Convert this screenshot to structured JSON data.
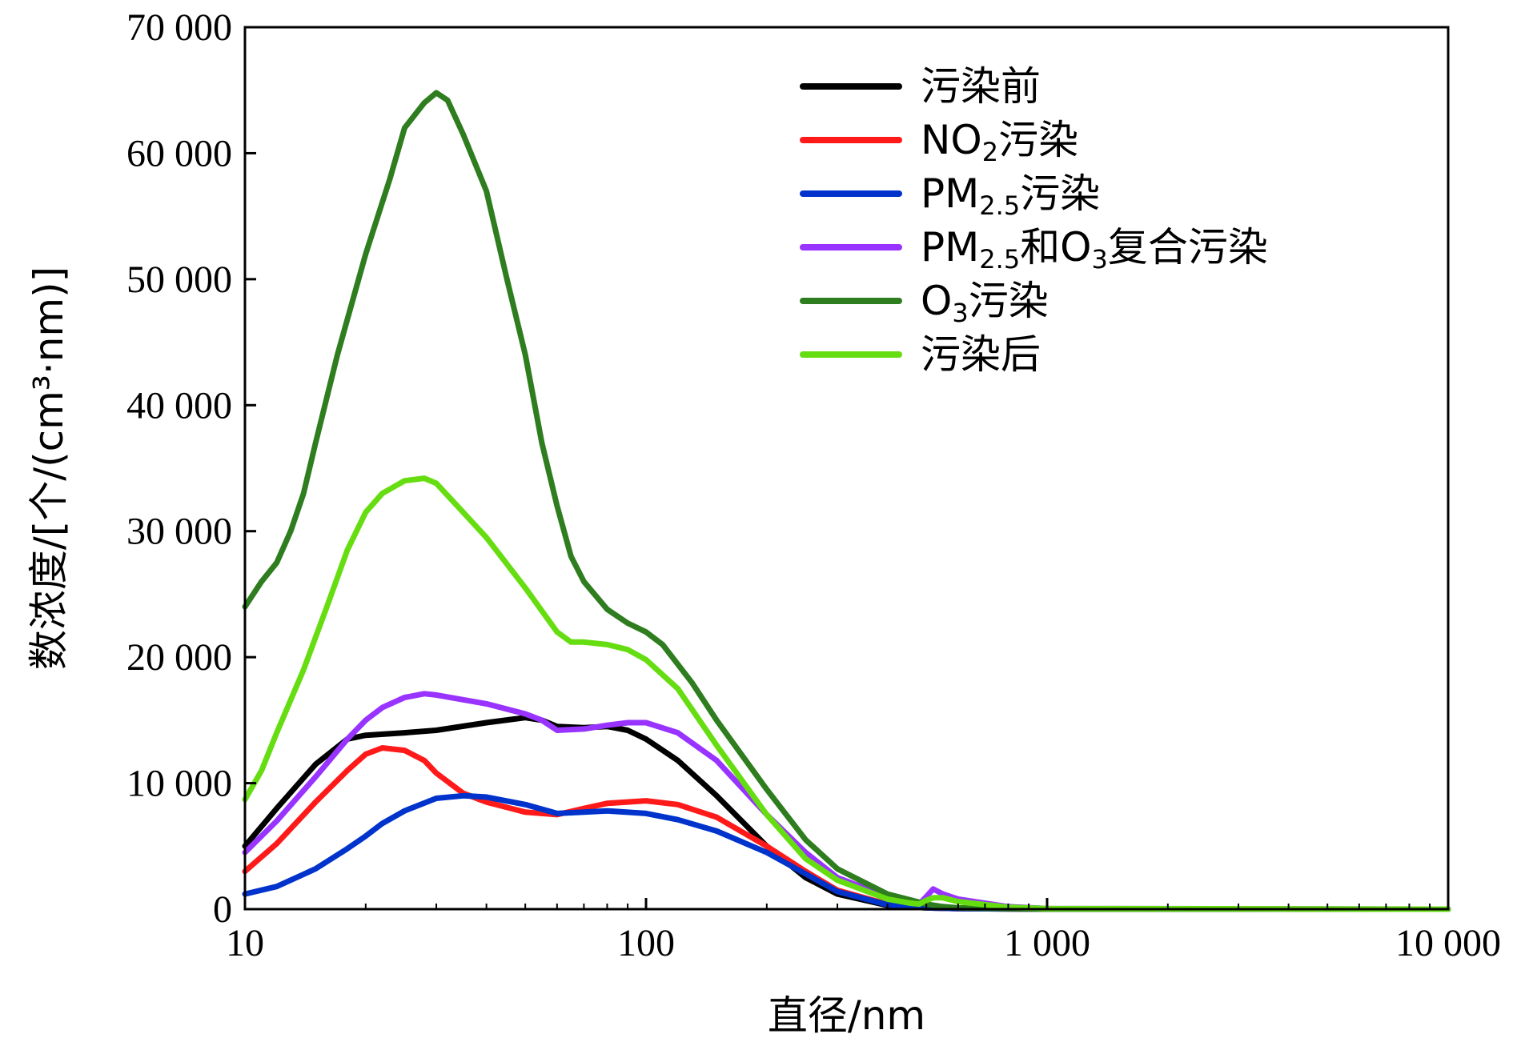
{
  "chart_data": {
    "type": "line",
    "xlabel": "直径/nm",
    "ylabel": "数浓度/[个/(cm³·nm)]",
    "xscale": "log",
    "xlim": [
      10,
      10000
    ],
    "ylim": [
      0,
      70000
    ],
    "grid": false,
    "legend_position": "top-right",
    "x_ticks": [
      {
        "value": 10,
        "label": "10"
      },
      {
        "value": 100,
        "label": "100"
      },
      {
        "value": 1000,
        "label": "1 000"
      },
      {
        "value": 10000,
        "label": "10 000"
      }
    ],
    "y_ticks": [
      {
        "value": 0,
        "label": "0"
      },
      {
        "value": 10000,
        "label": "10 000"
      },
      {
        "value": 20000,
        "label": "20 000"
      },
      {
        "value": 30000,
        "label": "30 000"
      },
      {
        "value": 40000,
        "label": "40 000"
      },
      {
        "value": 50000,
        "label": "50 000"
      },
      {
        "value": 60000,
        "label": "60 000"
      },
      {
        "value": 70000,
        "label": "70 000"
      }
    ],
    "series": [
      {
        "name": "污染前",
        "color": "#000000",
        "points": [
          [
            10,
            5000
          ],
          [
            12,
            8000
          ],
          [
            15,
            11500
          ],
          [
            18,
            13500
          ],
          [
            20,
            13800
          ],
          [
            25,
            14000
          ],
          [
            30,
            14200
          ],
          [
            40,
            14800
          ],
          [
            50,
            15200
          ],
          [
            55,
            15000
          ],
          [
            60,
            14500
          ],
          [
            70,
            14400
          ],
          [
            80,
            14500
          ],
          [
            90,
            14200
          ],
          [
            100,
            13500
          ],
          [
            120,
            11800
          ],
          [
            150,
            9000
          ],
          [
            200,
            5000
          ],
          [
            250,
            2500
          ],
          [
            300,
            1200
          ],
          [
            400,
            300
          ],
          [
            500,
            100
          ],
          [
            600,
            50
          ],
          [
            1000,
            0
          ],
          [
            10000,
            0
          ]
        ]
      },
      {
        "name": "NO₂污染",
        "color": "#ff1a1a",
        "points": [
          [
            10,
            3000
          ],
          [
            12,
            5200
          ],
          [
            15,
            8500
          ],
          [
            18,
            11000
          ],
          [
            20,
            12300
          ],
          [
            22,
            12800
          ],
          [
            25,
            12600
          ],
          [
            28,
            11800
          ],
          [
            30,
            10800
          ],
          [
            35,
            9200
          ],
          [
            40,
            8500
          ],
          [
            50,
            7700
          ],
          [
            60,
            7500
          ],
          [
            70,
            8000
          ],
          [
            80,
            8400
          ],
          [
            100,
            8600
          ],
          [
            120,
            8300
          ],
          [
            150,
            7300
          ],
          [
            200,
            5000
          ],
          [
            250,
            3000
          ],
          [
            300,
            1500
          ],
          [
            400,
            400
          ],
          [
            500,
            100
          ],
          [
            600,
            50
          ],
          [
            1000,
            0
          ],
          [
            10000,
            0
          ]
        ]
      },
      {
        "name": "PM₂.₅污染",
        "color": "#0033cc",
        "points": [
          [
            10,
            1200
          ],
          [
            12,
            1800
          ],
          [
            15,
            3200
          ],
          [
            18,
            4800
          ],
          [
            20,
            5800
          ],
          [
            22,
            6800
          ],
          [
            25,
            7800
          ],
          [
            30,
            8800
          ],
          [
            35,
            9000
          ],
          [
            40,
            8900
          ],
          [
            50,
            8300
          ],
          [
            60,
            7600
          ],
          [
            70,
            7700
          ],
          [
            80,
            7800
          ],
          [
            100,
            7600
          ],
          [
            120,
            7100
          ],
          [
            150,
            6200
          ],
          [
            200,
            4500
          ],
          [
            250,
            2800
          ],
          [
            300,
            1400
          ],
          [
            400,
            350
          ],
          [
            500,
            100
          ],
          [
            600,
            50
          ],
          [
            1000,
            0
          ],
          [
            10000,
            0
          ]
        ]
      },
      {
        "name": "PM₂.₅和O₃复合污染",
        "color": "#9933ff",
        "points": [
          [
            10,
            4500
          ],
          [
            12,
            7000
          ],
          [
            15,
            10500
          ],
          [
            18,
            13500
          ],
          [
            20,
            15000
          ],
          [
            22,
            16000
          ],
          [
            25,
            16800
          ],
          [
            28,
            17100
          ],
          [
            30,
            17000
          ],
          [
            40,
            16300
          ],
          [
            50,
            15500
          ],
          [
            55,
            15000
          ],
          [
            60,
            14200
          ],
          [
            70,
            14300
          ],
          [
            80,
            14600
          ],
          [
            90,
            14800
          ],
          [
            100,
            14800
          ],
          [
            120,
            14000
          ],
          [
            150,
            11800
          ],
          [
            200,
            7500
          ],
          [
            250,
            4500
          ],
          [
            300,
            2500
          ],
          [
            400,
            1000
          ],
          [
            450,
            600
          ],
          [
            480,
            400
          ],
          [
            500,
            1000
          ],
          [
            520,
            1600
          ],
          [
            550,
            1200
          ],
          [
            600,
            800
          ],
          [
            800,
            200
          ],
          [
            1000,
            50
          ],
          [
            10000,
            0
          ]
        ]
      },
      {
        "name": "O₃污染",
        "color": "#2e7d1e",
        "points": [
          [
            10,
            24000
          ],
          [
            11,
            26000
          ],
          [
            12,
            27500
          ],
          [
            13,
            30000
          ],
          [
            14,
            33000
          ],
          [
            15,
            37000
          ],
          [
            17,
            44000
          ],
          [
            20,
            52000
          ],
          [
            23,
            58000
          ],
          [
            25,
            62000
          ],
          [
            28,
            64000
          ],
          [
            30,
            64800
          ],
          [
            32,
            64200
          ],
          [
            35,
            61500
          ],
          [
            40,
            57000
          ],
          [
            45,
            50000
          ],
          [
            50,
            44000
          ],
          [
            55,
            37000
          ],
          [
            60,
            32000
          ],
          [
            65,
            28000
          ],
          [
            70,
            26000
          ],
          [
            80,
            23800
          ],
          [
            90,
            22700
          ],
          [
            100,
            22000
          ],
          [
            110,
            21000
          ],
          [
            130,
            18000
          ],
          [
            150,
            15000
          ],
          [
            200,
            9500
          ],
          [
            250,
            5500
          ],
          [
            300,
            3200
          ],
          [
            400,
            1200
          ],
          [
            500,
            400
          ],
          [
            550,
            200
          ],
          [
            600,
            100
          ],
          [
            1000,
            0
          ],
          [
            10000,
            0
          ]
        ]
      },
      {
        "name": "污染后",
        "color": "#66dd11",
        "points": [
          [
            10,
            8700
          ],
          [
            11,
            11000
          ],
          [
            12,
            14000
          ],
          [
            14,
            19000
          ],
          [
            16,
            24000
          ],
          [
            18,
            28500
          ],
          [
            20,
            31500
          ],
          [
            22,
            33000
          ],
          [
            25,
            34000
          ],
          [
            28,
            34200
          ],
          [
            30,
            33800
          ],
          [
            35,
            31500
          ],
          [
            40,
            29500
          ],
          [
            50,
            25500
          ],
          [
            60,
            22000
          ],
          [
            65,
            21200
          ],
          [
            70,
            21200
          ],
          [
            80,
            21000
          ],
          [
            90,
            20600
          ],
          [
            100,
            19800
          ],
          [
            120,
            17500
          ],
          [
            150,
            13000
          ],
          [
            200,
            7500
          ],
          [
            250,
            4000
          ],
          [
            300,
            2300
          ],
          [
            400,
            800
          ],
          [
            450,
            500
          ],
          [
            480,
            400
          ],
          [
            500,
            700
          ],
          [
            520,
            900
          ],
          [
            550,
            900
          ],
          [
            600,
            600
          ],
          [
            800,
            150
          ],
          [
            1000,
            50
          ],
          [
            10000,
            0
          ]
        ]
      }
    ]
  },
  "legend": {
    "items": [
      {
        "parts": [
          {
            "t": "污染前"
          }
        ]
      },
      {
        "parts": [
          {
            "t": "NO"
          },
          {
            "t": "2",
            "sub": true
          },
          {
            "t": "污染"
          }
        ]
      },
      {
        "parts": [
          {
            "t": "PM"
          },
          {
            "t": "2.5",
            "sub": true
          },
          {
            "t": "污染"
          }
        ]
      },
      {
        "parts": [
          {
            "t": "PM"
          },
          {
            "t": "2.5",
            "sub": true
          },
          {
            "t": "和O"
          },
          {
            "t": "3",
            "sub": true
          },
          {
            "t": "复合污染"
          }
        ]
      },
      {
        "parts": [
          {
            "t": "O"
          },
          {
            "t": "3",
            "sub": true
          },
          {
            "t": "污染"
          }
        ]
      },
      {
        "parts": [
          {
            "t": "污染后"
          }
        ]
      }
    ]
  }
}
